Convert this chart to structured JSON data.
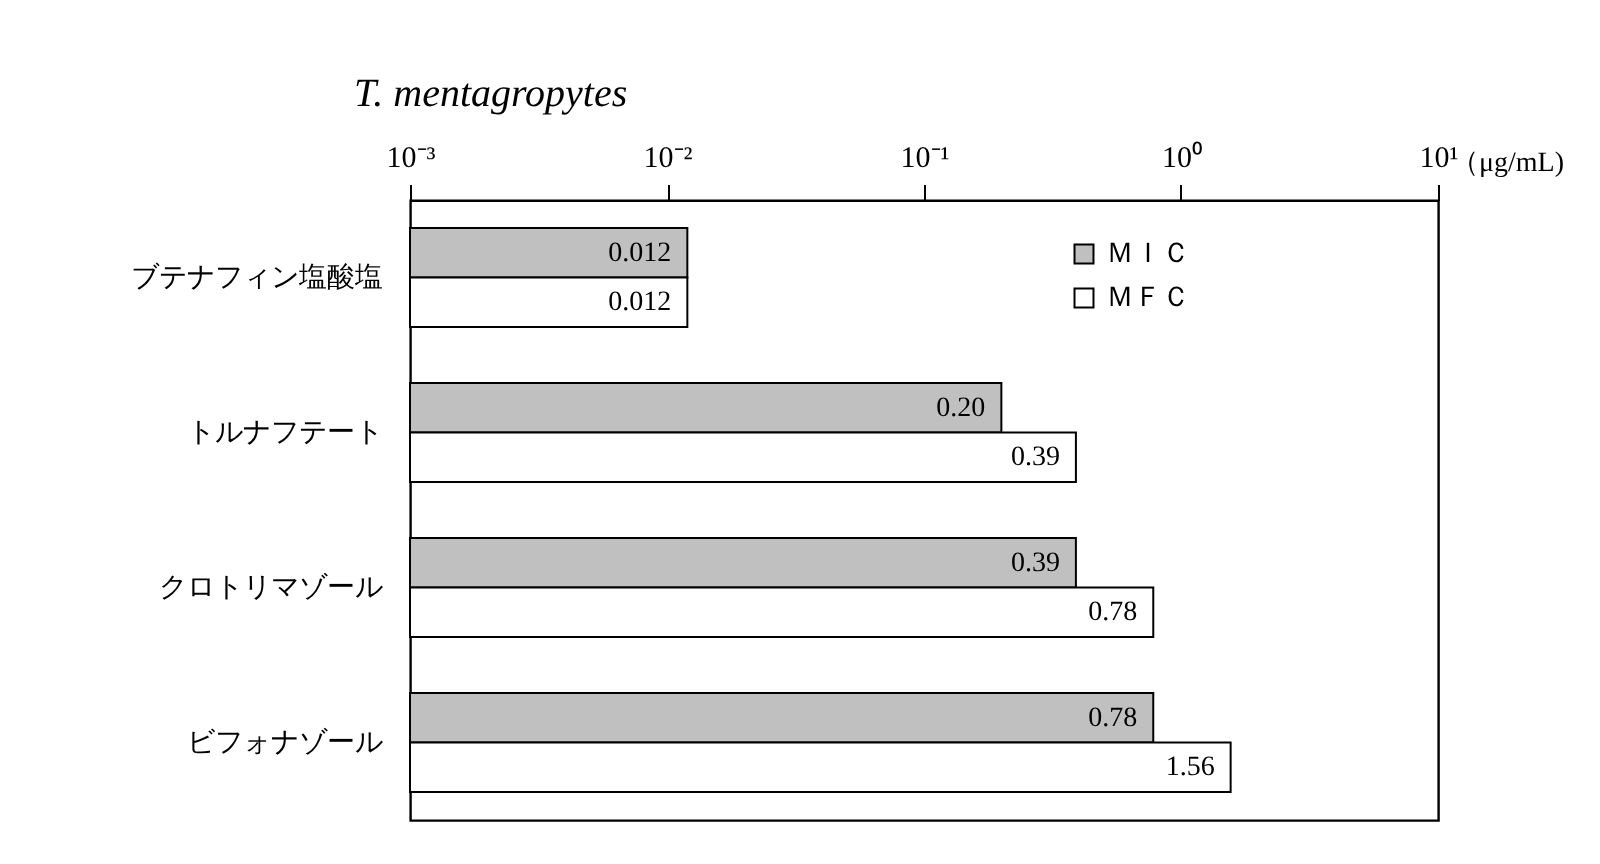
{
  "chart_data": {
    "type": "bar",
    "orientation": "horizontal",
    "title": "T. mentagropytes",
    "xlabel": "（μg/mL)",
    "categories": [
      "ブテナフィン塩酸塩",
      "トルナフテート",
      "クロトリマゾール",
      "ビフォナゾール"
    ],
    "series": [
      {
        "name": "ＭＩＣ",
        "color": "#c0c0c0",
        "values": [
          0.012,
          0.2,
          0.39,
          0.78
        ],
        "value_labels": [
          "0.012",
          "0.20",
          "0.39",
          "0.78"
        ]
      },
      {
        "name": "ＭＦＣ",
        "color": "#ffffff",
        "values": [
          0.012,
          0.39,
          0.78,
          1.56
        ],
        "value_labels": [
          "0.012",
          "0.39",
          "0.78",
          "1.56"
        ]
      }
    ],
    "log": "x",
    "xlim": [
      0.001,
      10
    ],
    "xticks": [
      {
        "value": 0.001,
        "label": "10⁻³"
      },
      {
        "value": 0.01,
        "label": "10⁻²"
      },
      {
        "value": 0.1,
        "label": "10⁻¹"
      },
      {
        "value": 1,
        "label": "10⁰"
      },
      {
        "value": 10,
        "label": "10¹"
      }
    ],
    "legend": "top right",
    "grid": false
  }
}
